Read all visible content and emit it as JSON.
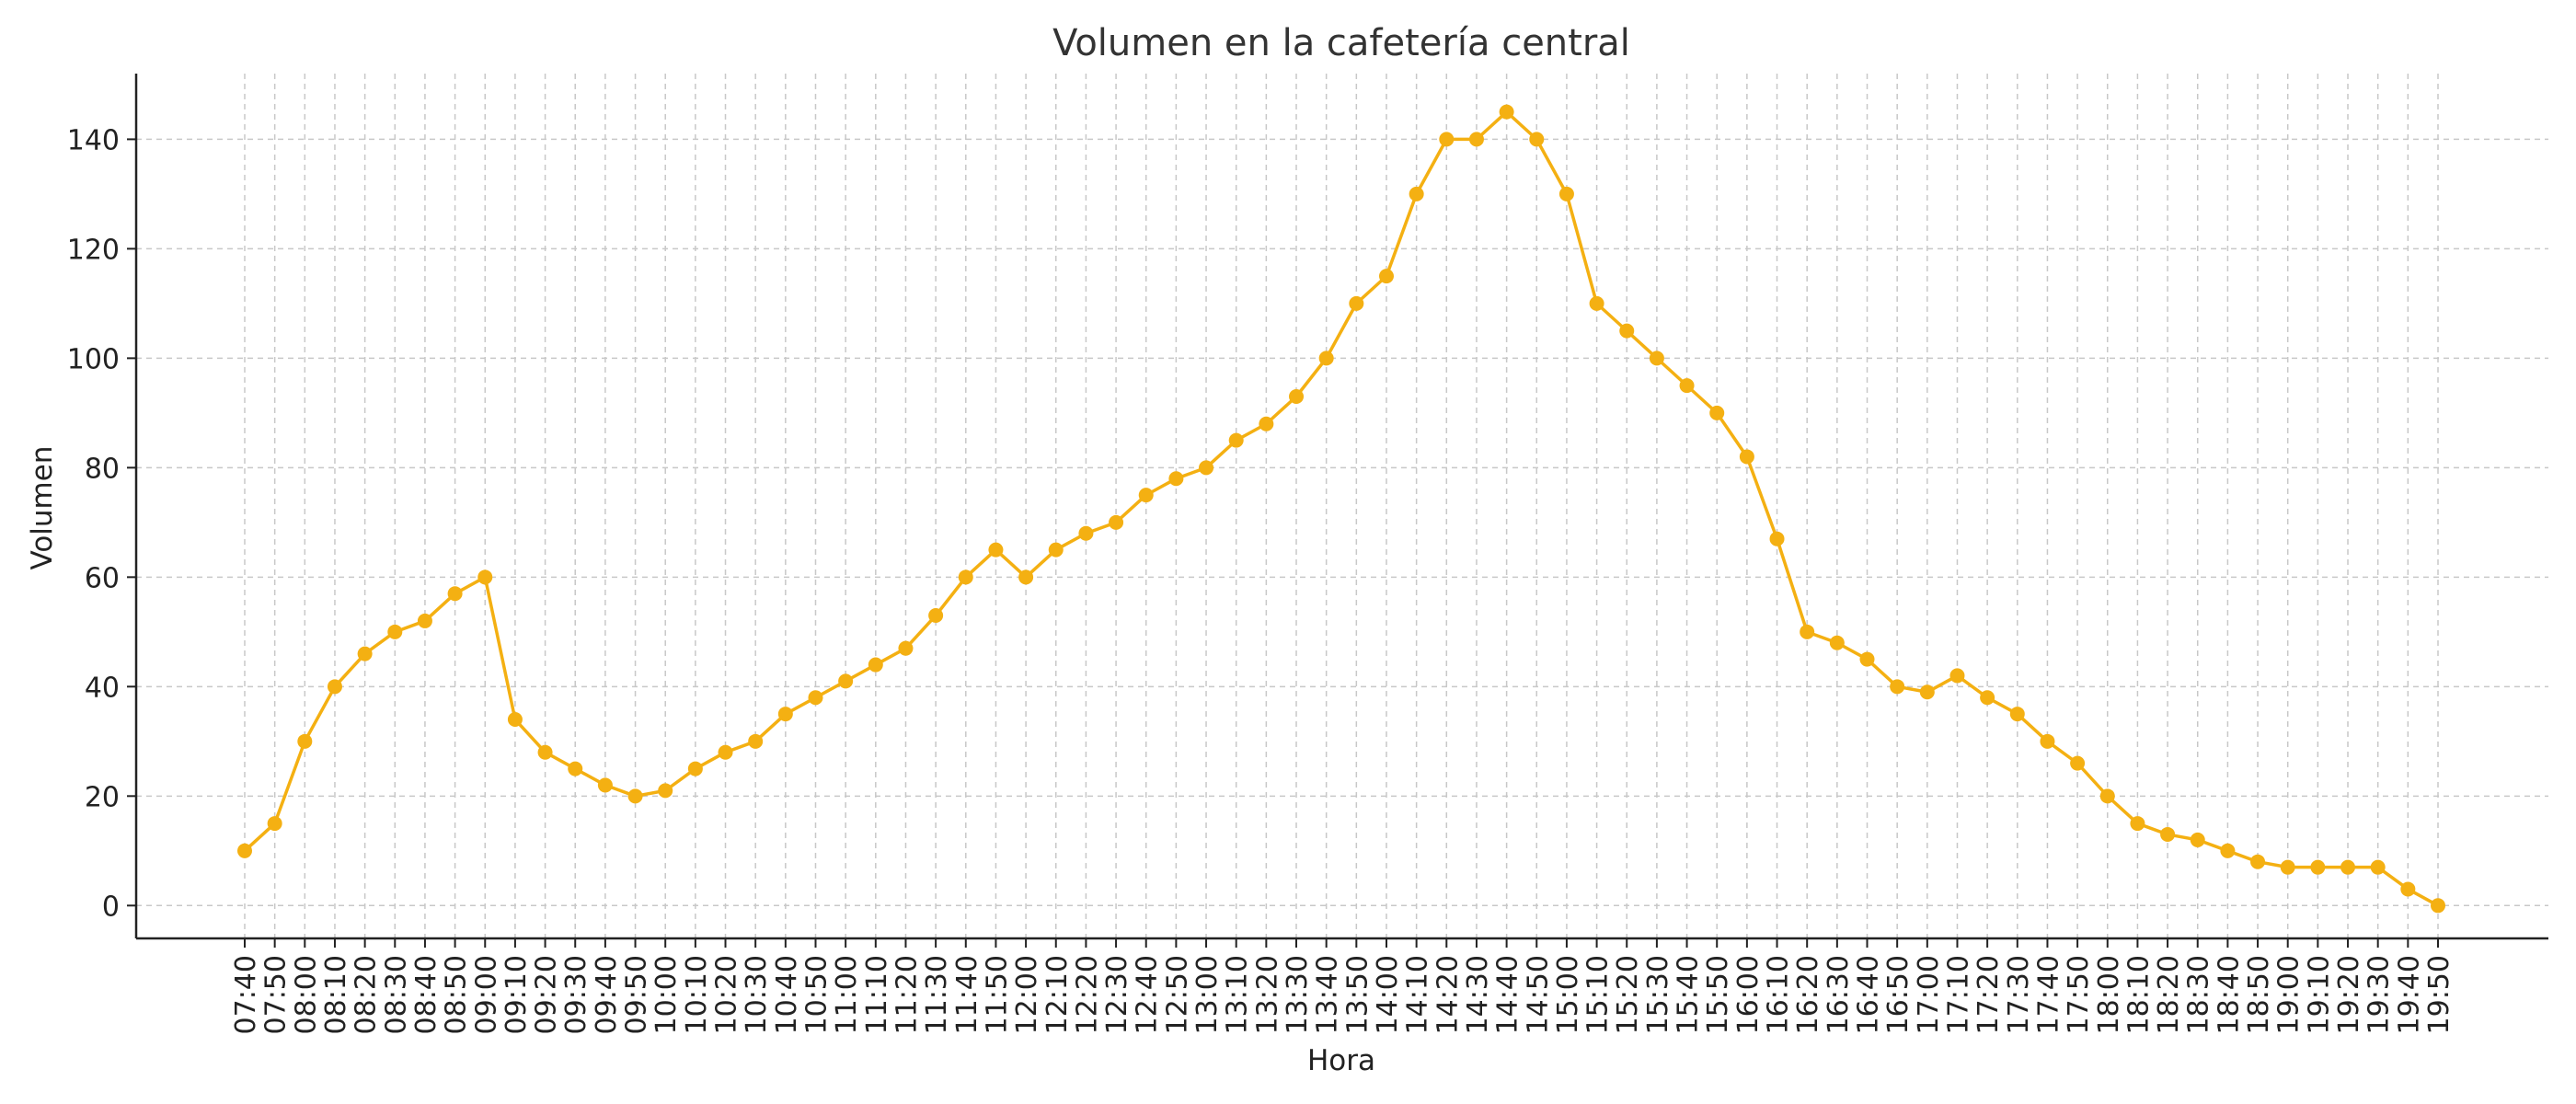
{
  "chart_data": {
    "type": "line",
    "title": "Volumen en la cafetería central",
    "xlabel": "Hora",
    "ylabel": "Volumen",
    "ylim": [
      -6,
      152
    ],
    "y_ticks": [
      0,
      20,
      40,
      60,
      80,
      100,
      120,
      140
    ],
    "grid": true,
    "grid_style": "dashed",
    "legend": "none",
    "line_color": "#F4B012",
    "categories": [
      "07:40",
      "07:50",
      "08:00",
      "08:10",
      "08:20",
      "08:30",
      "08:40",
      "08:50",
      "09:00",
      "09:10",
      "09:20",
      "09:30",
      "09:40",
      "09:50",
      "10:00",
      "10:10",
      "10:20",
      "10:30",
      "10:40",
      "10:50",
      "11:00",
      "11:10",
      "11:20",
      "11:30",
      "11:40",
      "11:50",
      "12:00",
      "12:10",
      "12:20",
      "12:30",
      "12:40",
      "12:50",
      "13:00",
      "13:10",
      "13:20",
      "13:30",
      "13:40",
      "13:50",
      "14:00",
      "14:10",
      "14:20",
      "14:30",
      "14:40",
      "14:50",
      "15:00",
      "15:10",
      "15:20",
      "15:30",
      "15:40",
      "15:50",
      "16:00",
      "16:10",
      "16:20",
      "16:30",
      "16:40",
      "16:50",
      "17:00",
      "17:10",
      "17:20",
      "17:30",
      "17:40",
      "17:50",
      "18:00",
      "18:10",
      "18:20",
      "18:30",
      "18:40",
      "18:50",
      "19:00",
      "19:10",
      "19:20",
      "19:30",
      "19:40",
      "19:50"
    ],
    "values": [
      10,
      15,
      30,
      40,
      46,
      50,
      52,
      57,
      60,
      34,
      28,
      25,
      22,
      20,
      21,
      25,
      28,
      30,
      35,
      38,
      41,
      44,
      47,
      53,
      60,
      65,
      60,
      65,
      68,
      70,
      75,
      78,
      80,
      85,
      88,
      93,
      100,
      110,
      115,
      130,
      140,
      140,
      145,
      140,
      130,
      110,
      105,
      100,
      95,
      90,
      82,
      67,
      50,
      48,
      45,
      40,
      39,
      42,
      38,
      35,
      30,
      26,
      20,
      15,
      13,
      12,
      10,
      8,
      7,
      7,
      7,
      7,
      3,
      0
    ]
  }
}
